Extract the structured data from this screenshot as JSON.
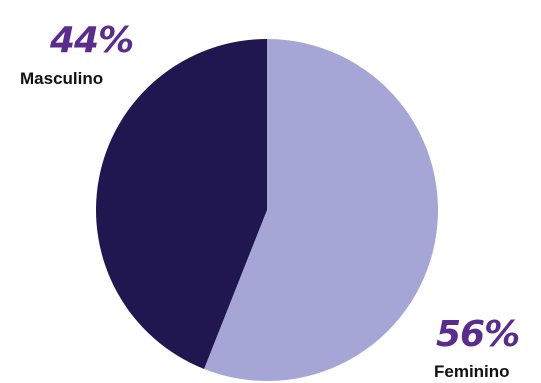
{
  "chart_data": {
    "type": "pie",
    "slices": [
      {
        "label": "Feminino",
        "value": 56,
        "display": "56%",
        "color": "#A5A6D6"
      },
      {
        "label": "Masculino",
        "value": 44,
        "display": "44%",
        "color": "#201650"
      }
    ],
    "percent_label_color": "#5A2C8C"
  }
}
